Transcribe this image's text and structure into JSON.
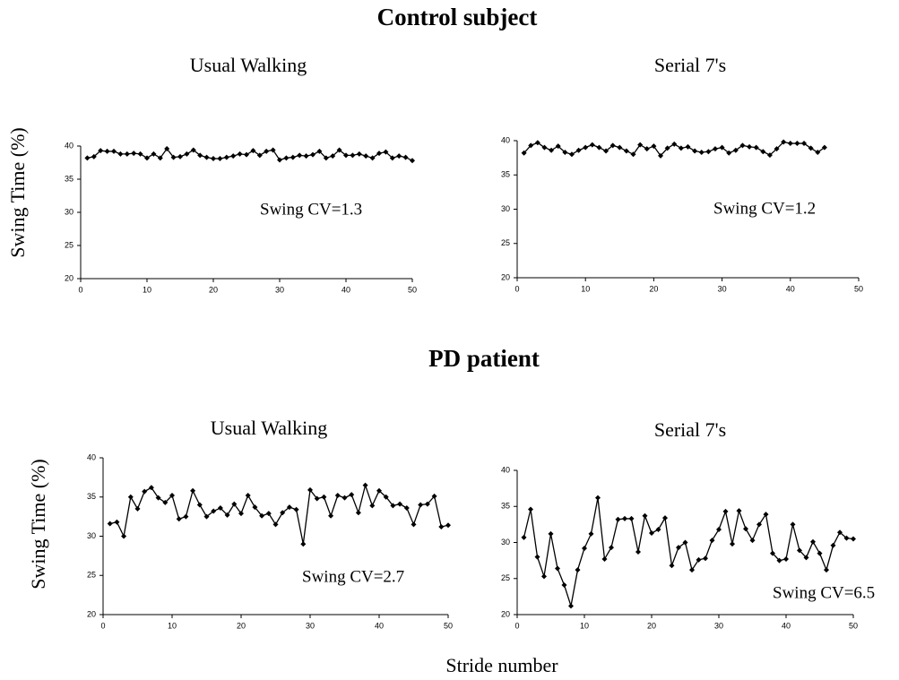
{
  "headings": [
    "Control subject",
    "PD patient"
  ],
  "xlabel": "Stride number",
  "chart_data": [
    {
      "type": "line",
      "title": "Usual Walking",
      "ylabel": "Swing Time (%)",
      "annotation": "Swing CV=1.3",
      "xlim": [
        0,
        50
      ],
      "xticks": [
        0,
        10,
        20,
        30,
        40,
        50
      ],
      "ylim": [
        20,
        40
      ],
      "yticks": [
        20,
        25,
        30,
        35,
        40
      ],
      "series": [
        {
          "color": "#000000",
          "x": [
            1,
            2,
            3,
            4,
            5,
            6,
            7,
            8,
            9,
            10,
            11,
            12,
            13,
            14,
            15,
            16,
            17,
            18,
            19,
            20,
            21,
            22,
            23,
            24,
            25,
            26,
            27,
            28,
            29,
            30,
            31,
            32,
            33,
            34,
            35,
            36,
            37,
            38,
            39,
            40,
            41,
            42,
            43,
            44,
            45,
            46,
            47,
            48,
            49,
            50
          ],
          "values": [
            38.2,
            38.4,
            39.3,
            39.2,
            39.2,
            38.8,
            38.8,
            38.9,
            38.8,
            38.2,
            38.8,
            38.2,
            39.6,
            38.3,
            38.4,
            38.8,
            39.4,
            38.6,
            38.3,
            38.1,
            38.1,
            38.3,
            38.5,
            38.8,
            38.7,
            39.3,
            38.6,
            39.2,
            39.4,
            37.9,
            38.2,
            38.3,
            38.6,
            38.5,
            38.7,
            39.2,
            38.2,
            38.5,
            39.4,
            38.6,
            38.6,
            38.8,
            38.5,
            38.2,
            38.9,
            39.1,
            38.2,
            38.5,
            38.3,
            37.8
          ]
        }
      ]
    },
    {
      "type": "line",
      "title": "Serial 7's",
      "annotation": "Swing CV=1.2",
      "xlim": [
        0,
        50
      ],
      "xticks": [
        0,
        10,
        20,
        30,
        40,
        50
      ],
      "ylim": [
        20,
        40
      ],
      "yticks": [
        20,
        25,
        30,
        35,
        40
      ],
      "series": [
        {
          "color": "#000000",
          "x": [
            1,
            2,
            3,
            4,
            5,
            6,
            7,
            8,
            9,
            10,
            11,
            12,
            13,
            14,
            15,
            16,
            17,
            18,
            19,
            20,
            21,
            22,
            23,
            24,
            25,
            26,
            27,
            28,
            29,
            30,
            31,
            32,
            33,
            34,
            35,
            36,
            37,
            38,
            39,
            40,
            41,
            42,
            43,
            44,
            45
          ],
          "values": [
            38.2,
            39.3,
            39.7,
            39.0,
            38.6,
            39.2,
            38.3,
            38.0,
            38.6,
            39.0,
            39.4,
            39.0,
            38.5,
            39.3,
            39.0,
            38.5,
            38.0,
            39.4,
            38.8,
            39.2,
            37.8,
            38.9,
            39.5,
            38.9,
            39.1,
            38.5,
            38.3,
            38.4,
            38.8,
            39.0,
            38.2,
            38.6,
            39.3,
            39.1,
            39.0,
            38.4,
            37.9,
            38.8,
            39.8,
            39.6,
            39.6,
            39.6,
            38.9,
            38.3,
            39.0
          ]
        }
      ]
    },
    {
      "type": "line",
      "title": "Usual Walking",
      "ylabel": "Swing Time (%)",
      "annotation": "Swing CV=2.7",
      "xlim": [
        0,
        50
      ],
      "xticks": [
        0,
        10,
        20,
        30,
        40,
        50
      ],
      "ylim": [
        20,
        40
      ],
      "yticks": [
        20,
        25,
        30,
        35,
        40
      ],
      "series": [
        {
          "color": "#000000",
          "x": [
            1,
            2,
            3,
            4,
            5,
            6,
            7,
            8,
            9,
            10,
            11,
            12,
            13,
            14,
            15,
            16,
            17,
            18,
            19,
            20,
            21,
            22,
            23,
            24,
            25,
            26,
            27,
            28,
            29,
            30,
            31,
            32,
            33,
            34,
            35,
            36,
            37,
            38,
            39,
            40,
            41,
            42,
            43,
            44,
            45,
            46,
            47,
            48,
            49,
            50
          ],
          "values": [
            31.6,
            31.8,
            30.0,
            35.0,
            33.5,
            35.7,
            36.2,
            34.9,
            34.3,
            35.2,
            32.2,
            32.5,
            35.8,
            34.0,
            32.5,
            33.2,
            33.6,
            32.7,
            34.1,
            32.9,
            35.2,
            33.7,
            32.6,
            32.9,
            31.5,
            33.0,
            33.7,
            33.4,
            29.0,
            35.9,
            34.8,
            35.0,
            32.6,
            35.2,
            34.9,
            35.3,
            33.0,
            36.5,
            33.9,
            35.8,
            35.0,
            33.9,
            34.1,
            33.6,
            31.5,
            34.0,
            34.1,
            35.1,
            31.2,
            31.4
          ]
        }
      ]
    },
    {
      "type": "line",
      "title": "Serial 7's",
      "annotation": "Swing CV=6.5",
      "xlim": [
        0,
        50
      ],
      "xticks": [
        0,
        10,
        20,
        30,
        40,
        50
      ],
      "ylim": [
        20,
        40
      ],
      "yticks": [
        20,
        25,
        30,
        35,
        40
      ],
      "series": [
        {
          "color": "#000000",
          "x": [
            1,
            2,
            3,
            4,
            5,
            6,
            7,
            8,
            9,
            10,
            11,
            12,
            13,
            14,
            15,
            16,
            17,
            18,
            19,
            20,
            21,
            22,
            23,
            24,
            25,
            26,
            27,
            28,
            29,
            30,
            31,
            32,
            33,
            34,
            35,
            36,
            37,
            38,
            39,
            40,
            41,
            42,
            43,
            44,
            45,
            46,
            47,
            48,
            49,
            50
          ],
          "values": [
            30.7,
            34.6,
            28.0,
            25.3,
            31.2,
            26.4,
            24.1,
            21.2,
            26.2,
            29.2,
            31.2,
            36.2,
            27.7,
            29.3,
            33.2,
            33.3,
            33.3,
            28.7,
            33.7,
            31.3,
            31.8,
            33.4,
            26.8,
            29.3,
            30.0,
            26.2,
            27.6,
            27.8,
            30.3,
            31.8,
            34.3,
            29.8,
            34.4,
            31.9,
            30.3,
            32.5,
            33.9,
            28.5,
            27.5,
            27.7,
            32.5,
            28.9,
            27.9,
            30.1,
            28.5,
            26.2,
            29.6,
            31.4,
            30.6,
            30.5
          ]
        }
      ]
    }
  ]
}
